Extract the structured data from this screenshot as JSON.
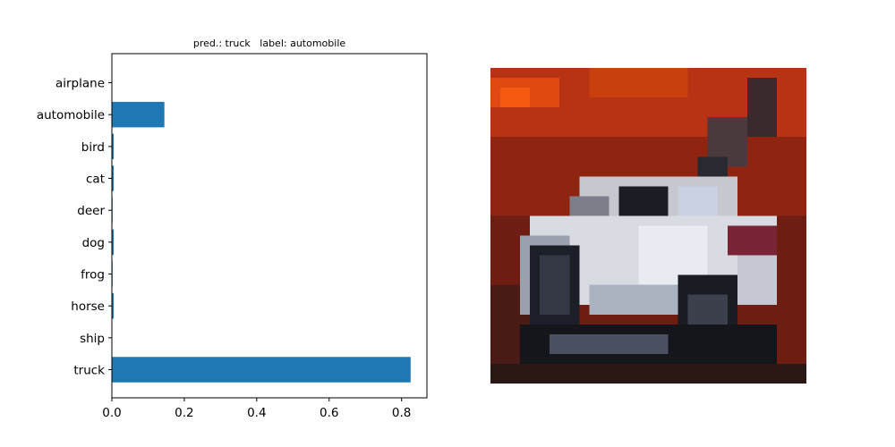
{
  "chart_data": {
    "type": "bar",
    "orientation": "horizontal",
    "title": "pred.: truck   label: automobile",
    "categories": [
      "airplane",
      "automobile",
      "bird",
      "cat",
      "deer",
      "dog",
      "frog",
      "horse",
      "ship",
      "truck"
    ],
    "values": [
      0.0005,
      0.145,
      0.005,
      0.005,
      0.002,
      0.005,
      0.002,
      0.005,
      0.001,
      0.825
    ],
    "xlim": [
      0,
      0.87
    ],
    "xticks": [
      "0.0",
      "0.2",
      "0.4",
      "0.6",
      "0.8"
    ],
    "xlabel": "",
    "ylabel": "",
    "grid": false,
    "bar_color": "#1f77b4"
  },
  "image_panel": {
    "subject": "pixelated CIFAR image of a white car on a red background"
  }
}
